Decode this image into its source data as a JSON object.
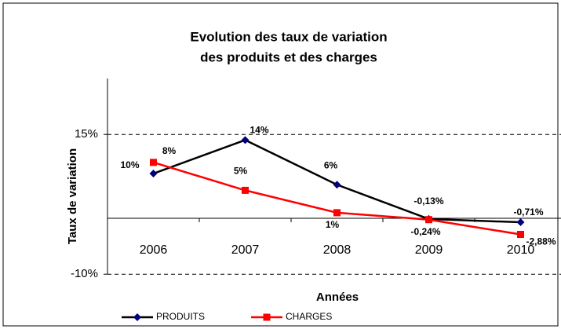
{
  "chart_data": {
    "type": "line",
    "title": [
      "Evolution des taux de variation",
      "des produits et des charges"
    ],
    "x_label": "Années",
    "y_label": "Taux de variation",
    "categories": [
      "2006",
      "2007",
      "2008",
      "2009",
      "2010"
    ],
    "series": [
      {
        "name": "PRODUITS",
        "color": "#000000",
        "marker_color": "#000080",
        "label_color": "#1f1f8f",
        "values": [
          8,
          14,
          6,
          -0.13,
          -0.71
        ],
        "value_labels": [
          "8%",
          "14%",
          "6%",
          "-0,13%",
          "-0,71%"
        ]
      },
      {
        "name": "CHARGES",
        "color": "#ff0000",
        "marker_color": "#ff0000",
        "label_color": "#ff0000",
        "values": [
          10,
          5,
          1,
          -0.24,
          -2.88
        ],
        "value_labels": [
          "10%",
          "5%",
          "1%",
          "-0,24%",
          "-2,88%"
        ]
      }
    ],
    "ylim": [
      -10,
      25
    ],
    "yticks": [
      {
        "value": -10,
        "label": "-10%"
      },
      {
        "value": 15,
        "label": "15%"
      }
    ],
    "grid": true,
    "legend": "bottom"
  }
}
